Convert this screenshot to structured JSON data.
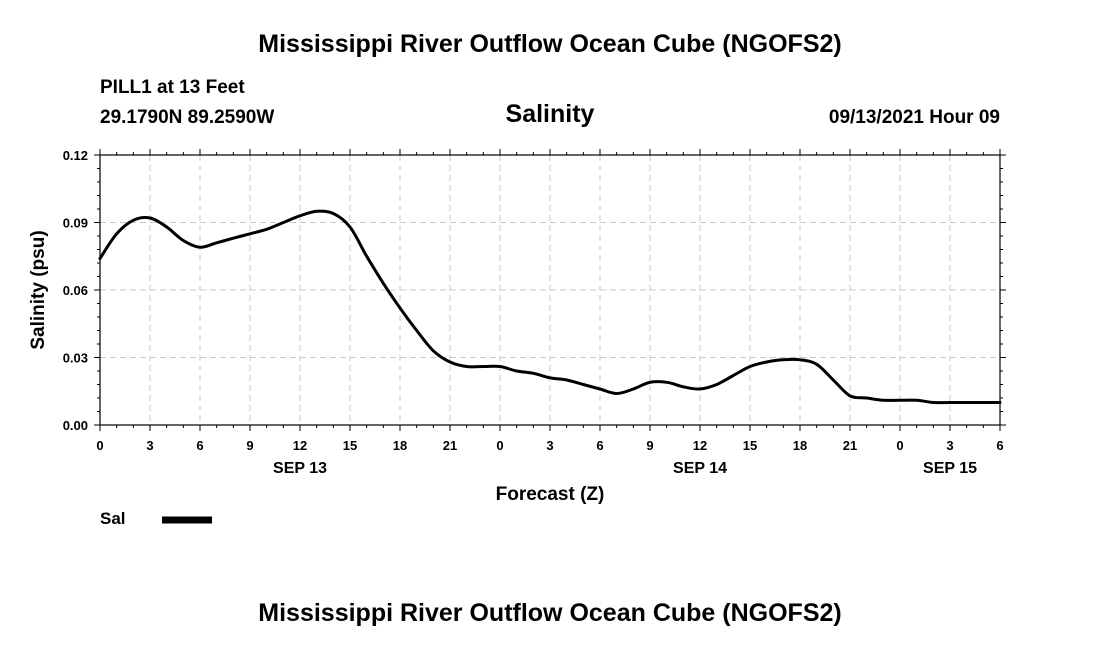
{
  "header": {
    "title": "Mississippi River Outflow Ocean Cube (NGOFS2)",
    "station": "PILL1 at 13 Feet",
    "coords": "29.1790N  89.2590W",
    "parameter": "Salinity",
    "datetime": "09/13/2021 Hour 09"
  },
  "footer": {
    "title": "Mississippi River Outflow Ocean Cube (NGOFS2)"
  },
  "chart_data": {
    "type": "line",
    "title": "Salinity",
    "xlabel": "Forecast (Z)",
    "ylabel": "Salinity (psu)",
    "ylim": [
      0,
      0.12
    ],
    "xlim": [
      0,
      54
    ],
    "grid": true,
    "y_ticks": [
      0,
      0.03,
      0.06,
      0.09,
      0.12
    ],
    "y_tick_labels": [
      "0.00",
      "0.03",
      "0.06",
      "0.09",
      "0.12"
    ],
    "x_ticks": [
      0,
      3,
      6,
      9,
      12,
      15,
      18,
      21,
      24,
      27,
      30,
      33,
      36,
      39,
      42,
      45,
      48,
      51,
      54
    ],
    "x_tick_labels": [
      "0",
      "3",
      "6",
      "9",
      "12",
      "15",
      "18",
      "21",
      "0",
      "3",
      "6",
      "9",
      "12",
      "15",
      "18",
      "21",
      "0",
      "3",
      "6"
    ],
    "date_labels": [
      {
        "x": 12,
        "label": "SEP 13"
      },
      {
        "x": 36,
        "label": "SEP 14"
      },
      {
        "x": 51,
        "label": "SEP 15"
      }
    ],
    "legend": {
      "placement": "bottom-left",
      "entries": [
        "Sal"
      ]
    },
    "series": [
      {
        "name": "Sal",
        "x": [
          0,
          1,
          2,
          3,
          4,
          5,
          6,
          7,
          8,
          9,
          10,
          11,
          12,
          13,
          14,
          15,
          16,
          17,
          18,
          19,
          20,
          21,
          22,
          23,
          24,
          25,
          26,
          27,
          28,
          29,
          30,
          31,
          32,
          33,
          34,
          35,
          36,
          37,
          38,
          39,
          40,
          41,
          42,
          43,
          44,
          45,
          46,
          47,
          48,
          49,
          50,
          51,
          52,
          53,
          54
        ],
        "values": [
          0.074,
          0.085,
          0.091,
          0.092,
          0.088,
          0.082,
          0.079,
          0.081,
          0.083,
          0.085,
          0.087,
          0.09,
          0.093,
          0.095,
          0.094,
          0.088,
          0.075,
          0.063,
          0.052,
          0.042,
          0.033,
          0.028,
          0.026,
          0.026,
          0.026,
          0.024,
          0.023,
          0.021,
          0.02,
          0.018,
          0.016,
          0.014,
          0.016,
          0.019,
          0.019,
          0.017,
          0.016,
          0.018,
          0.022,
          0.026,
          0.028,
          0.029,
          0.029,
          0.027,
          0.02,
          0.013,
          0.012,
          0.011,
          0.011,
          0.011,
          0.01,
          0.01,
          0.01,
          0.01,
          0.01
        ]
      }
    ]
  }
}
